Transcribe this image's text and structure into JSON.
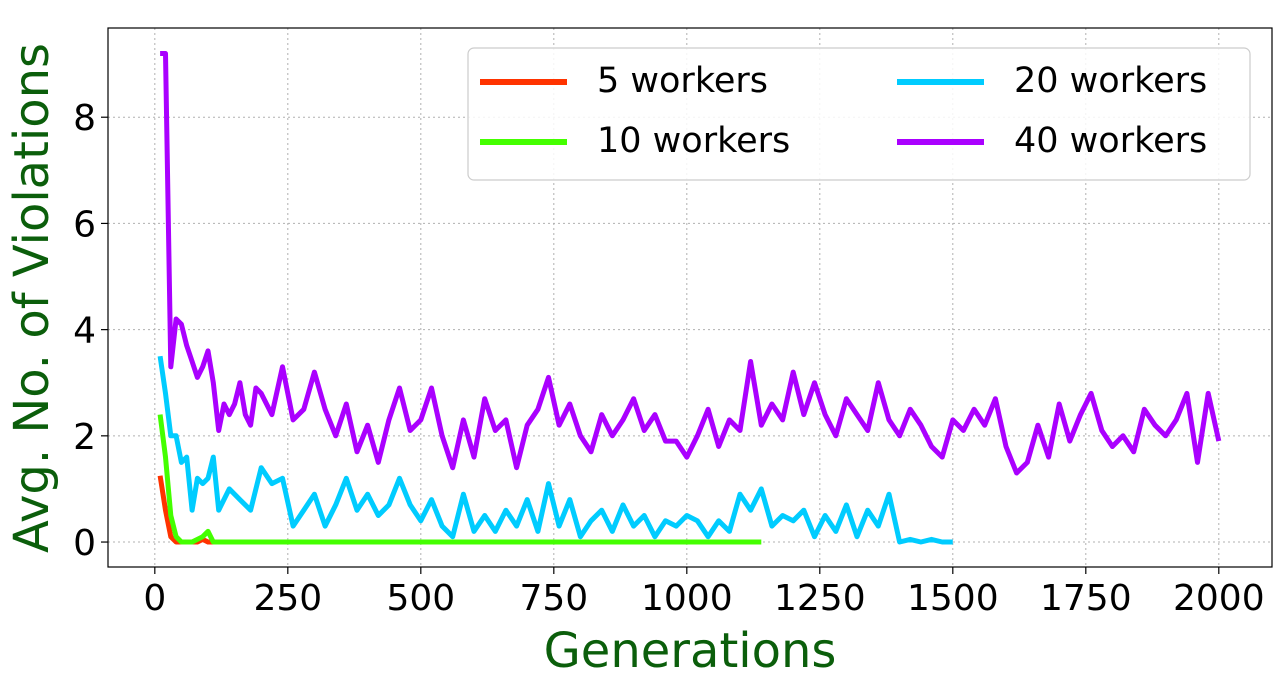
{
  "chart_data": {
    "type": "line",
    "xlabel": "Generations",
    "ylabel": "Avg. No. of Violations",
    "xlim": [
      -88,
      2100
    ],
    "ylim": [
      -0.47,
      9.68
    ],
    "xticks": [
      0,
      250,
      500,
      750,
      1000,
      1250,
      1500,
      1750,
      2000
    ],
    "yticks": [
      0,
      2,
      4,
      6,
      8
    ],
    "grid": true,
    "legend": "upper right",
    "legend_columns": 2,
    "series": [
      {
        "name": "5 workers",
        "color": "#ff3300",
        "x": [
          10,
          20,
          30,
          40,
          60,
          80,
          90,
          100,
          110,
          500,
          1100
        ],
        "values": [
          1.25,
          0.6,
          0.1,
          0,
          0,
          0,
          0.05,
          0,
          0,
          0,
          0
        ]
      },
      {
        "name": "10 workers",
        "color": "#44ff00",
        "x": [
          10,
          20,
          30,
          40,
          50,
          70,
          90,
          100,
          110,
          300,
          600,
          900,
          1140
        ],
        "values": [
          2.4,
          1.6,
          0.5,
          0.1,
          0,
          0,
          0.1,
          0.2,
          0,
          0,
          0,
          0,
          0
        ]
      },
      {
        "name": "20 workers",
        "color": "#00ccff",
        "x": [
          10,
          20,
          30,
          40,
          50,
          60,
          70,
          80,
          90,
          100,
          110,
          120,
          140,
          160,
          180,
          200,
          220,
          240,
          260,
          280,
          300,
          320,
          340,
          360,
          380,
          400,
          420,
          440,
          460,
          480,
          500,
          520,
          540,
          560,
          580,
          600,
          620,
          640,
          660,
          680,
          700,
          720,
          740,
          760,
          780,
          800,
          820,
          840,
          860,
          880,
          900,
          920,
          940,
          960,
          980,
          1000,
          1020,
          1040,
          1060,
          1080,
          1100,
          1120,
          1140,
          1160,
          1180,
          1200,
          1220,
          1240,
          1260,
          1280,
          1300,
          1320,
          1340,
          1360,
          1380,
          1400,
          1420,
          1440,
          1460,
          1480,
          1500
        ],
        "values": [
          3.5,
          2.8,
          2.0,
          2.0,
          1.5,
          1.6,
          0.6,
          1.2,
          1.1,
          1.2,
          1.6,
          0.6,
          1.0,
          0.8,
          0.6,
          1.4,
          1.1,
          1.2,
          0.3,
          0.6,
          0.9,
          0.3,
          0.7,
          1.2,
          0.6,
          0.9,
          0.5,
          0.7,
          1.2,
          0.7,
          0.4,
          0.8,
          0.3,
          0.1,
          0.9,
          0.2,
          0.5,
          0.2,
          0.6,
          0.3,
          0.8,
          0.2,
          1.1,
          0.3,
          0.8,
          0.1,
          0.4,
          0.6,
          0.2,
          0.7,
          0.3,
          0.5,
          0.1,
          0.4,
          0.3,
          0.5,
          0.4,
          0.1,
          0.4,
          0.2,
          0.9,
          0.6,
          1.0,
          0.3,
          0.5,
          0.4,
          0.6,
          0.1,
          0.5,
          0.2,
          0.7,
          0.1,
          0.6,
          0.3,
          0.9,
          0.0,
          0.05,
          0.0,
          0.05,
          0.0,
          0.0
        ]
      },
      {
        "name": "40 workers",
        "color": "#aa00ff",
        "x": [
          10,
          20,
          30,
          40,
          50,
          60,
          70,
          80,
          90,
          100,
          110,
          120,
          130,
          140,
          150,
          160,
          170,
          180,
          190,
          200,
          220,
          240,
          260,
          280,
          300,
          320,
          340,
          360,
          380,
          400,
          420,
          440,
          460,
          480,
          500,
          520,
          540,
          560,
          580,
          600,
          620,
          640,
          660,
          680,
          700,
          720,
          740,
          760,
          780,
          800,
          820,
          840,
          860,
          880,
          900,
          920,
          940,
          960,
          980,
          1000,
          1020,
          1040,
          1060,
          1080,
          1100,
          1120,
          1140,
          1160,
          1180,
          1200,
          1220,
          1240,
          1260,
          1280,
          1300,
          1320,
          1340,
          1360,
          1380,
          1400,
          1420,
          1440,
          1460,
          1480,
          1500,
          1520,
          1540,
          1560,
          1580,
          1600,
          1620,
          1640,
          1660,
          1680,
          1700,
          1720,
          1740,
          1760,
          1780,
          1800,
          1820,
          1840,
          1860,
          1880,
          1900,
          1920,
          1940,
          1960,
          1980,
          2000
        ],
        "values": [
          9.2,
          9.2,
          3.3,
          4.2,
          4.1,
          3.7,
          3.4,
          3.1,
          3.3,
          3.6,
          3.0,
          2.1,
          2.6,
          2.4,
          2.6,
          3.0,
          2.4,
          2.2,
          2.9,
          2.8,
          2.4,
          3.3,
          2.3,
          2.5,
          3.2,
          2.5,
          2.0,
          2.6,
          1.7,
          2.2,
          1.5,
          2.3,
          2.9,
          2.1,
          2.3,
          2.9,
          2.0,
          1.4,
          2.3,
          1.6,
          2.7,
          2.1,
          2.3,
          1.4,
          2.2,
          2.5,
          3.1,
          2.2,
          2.6,
          2.0,
          1.7,
          2.4,
          2.0,
          2.3,
          2.7,
          2.1,
          2.4,
          1.9,
          1.9,
          1.6,
          2.0,
          2.5,
          1.8,
          2.3,
          2.1,
          3.4,
          2.2,
          2.6,
          2.3,
          3.2,
          2.4,
          3.0,
          2.4,
          2.0,
          2.7,
          2.4,
          2.1,
          3.0,
          2.3,
          2.0,
          2.5,
          2.2,
          1.8,
          1.6,
          2.3,
          2.1,
          2.5,
          2.2,
          2.7,
          1.8,
          1.3,
          1.5,
          2.2,
          1.6,
          2.6,
          1.9,
          2.4,
          2.8,
          2.1,
          1.8,
          2.0,
          1.7,
          2.5,
          2.2,
          2.0,
          2.3,
          2.8,
          1.5,
          2.8,
          1.9
        ]
      }
    ]
  }
}
